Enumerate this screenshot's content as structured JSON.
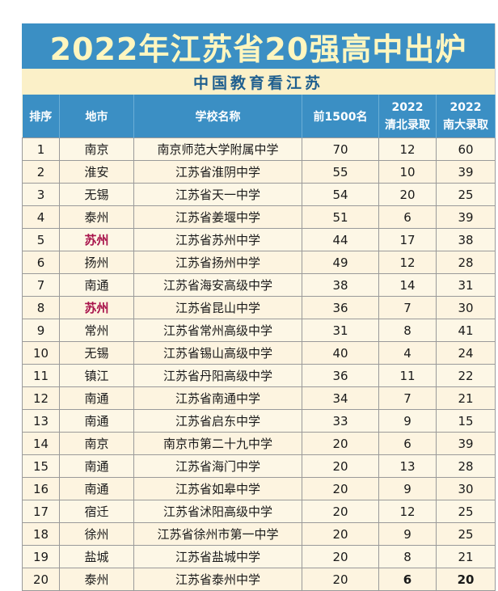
{
  "title": "2022年江苏省20强高中出炉",
  "subtitle": "中国教育看江苏",
  "headers": {
    "rank": "排序",
    "city": "地市",
    "school": "学校名称",
    "top1500": "前1500名",
    "qb_year": "2022",
    "qb_label": "清北录取",
    "nd_year": "2022",
    "nd_label": "南大录取"
  },
  "rows": [
    {
      "rank": "1",
      "city": "南京",
      "school": "南京师范大学附属中学",
      "top1500": "70",
      "qb": "12",
      "nd": "60"
    },
    {
      "rank": "2",
      "city": "淮安",
      "school": "江苏省淮阴中学",
      "top1500": "55",
      "qb": "10",
      "nd": "39"
    },
    {
      "rank": "3",
      "city": "无锡",
      "school": "江苏省天一中学",
      "top1500": "54",
      "qb": "20",
      "nd": "25"
    },
    {
      "rank": "4",
      "city": "泰州",
      "school": "江苏省姜堰中学",
      "top1500": "51",
      "qb": "6",
      "nd": "39"
    },
    {
      "rank": "5",
      "city": "苏州",
      "school": "江苏省苏州中学",
      "top1500": "44",
      "qb": "17",
      "nd": "38"
    },
    {
      "rank": "6",
      "city": "扬州",
      "school": "江苏省扬州中学",
      "top1500": "49",
      "qb": "12",
      "nd": "28"
    },
    {
      "rank": "7",
      "city": "南通",
      "school": "江苏省海安高级中学",
      "top1500": "38",
      "qb": "14",
      "nd": "31"
    },
    {
      "rank": "8",
      "city": "苏州",
      "school": "江苏省昆山中学",
      "top1500": "36",
      "qb": "7",
      "nd": "30"
    },
    {
      "rank": "9",
      "city": "常州",
      "school": "江苏省常州高级中学",
      "top1500": "31",
      "qb": "8",
      "nd": "41"
    },
    {
      "rank": "10",
      "city": "无锡",
      "school": "江苏省锡山高级中学",
      "top1500": "40",
      "qb": "4",
      "nd": "24"
    },
    {
      "rank": "11",
      "city": "镇江",
      "school": "江苏省丹阳高级中学",
      "top1500": "36",
      "qb": "11",
      "nd": "22"
    },
    {
      "rank": "12",
      "city": "南通",
      "school": "江苏省南通中学",
      "top1500": "34",
      "qb": "7",
      "nd": "21"
    },
    {
      "rank": "13",
      "city": "南通",
      "school": "江苏省启东中学",
      "top1500": "33",
      "qb": "9",
      "nd": "15"
    },
    {
      "rank": "14",
      "city": "南京",
      "school": "南京市第二十九中学",
      "top1500": "20",
      "qb": "6",
      "nd": "39"
    },
    {
      "rank": "15",
      "city": "南通",
      "school": "江苏省海门中学",
      "top1500": "20",
      "qb": "13",
      "nd": "28"
    },
    {
      "rank": "16",
      "city": "南通",
      "school": "江苏省如皋中学",
      "top1500": "20",
      "qb": "9",
      "nd": "30"
    },
    {
      "rank": "17",
      "city": "宿迁",
      "school": "江苏省沭阳高级中学",
      "top1500": "20",
      "qb": "12",
      "nd": "25"
    },
    {
      "rank": "18",
      "city": "徐州",
      "school": "江苏省徐州市第一中学",
      "top1500": "20",
      "qb": "9",
      "nd": "25"
    },
    {
      "rank": "19",
      "city": "盐城",
      "school": "江苏省盐城中学",
      "top1500": "20",
      "qb": "8",
      "nd": "21"
    },
    {
      "rank": "20",
      "city": "泰州",
      "school": "江苏省泰州中学",
      "top1500": "20",
      "qb": "6",
      "nd": "20"
    }
  ],
  "highlight_city": "苏州",
  "colors": {
    "header_blue": "#3b8fc4",
    "title_text": "#fff6bf",
    "subtitle_text": "#1f5f8f",
    "highlight_text": "#a8124a"
  }
}
